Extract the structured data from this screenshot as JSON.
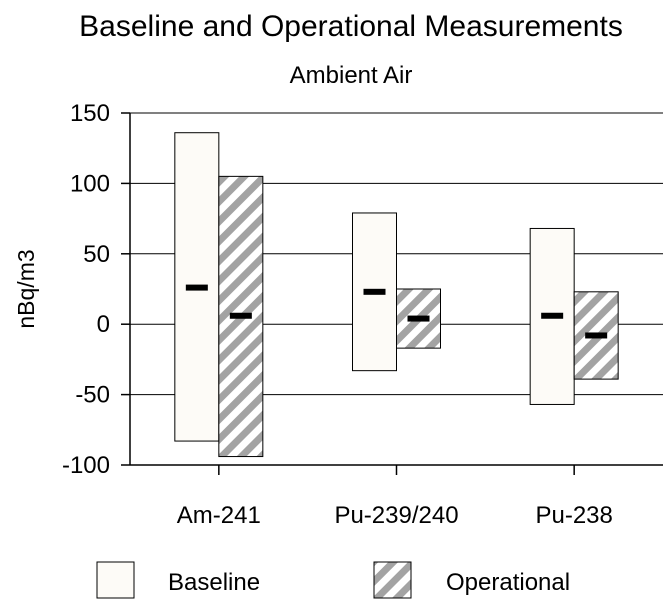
{
  "chart_data": {
    "type": "bar",
    "title": "Baseline and Operational Measurements",
    "subtitle": "Ambient Air",
    "xlabel": "",
    "ylabel": "nBq/m3",
    "ylim": [
      -100,
      150
    ],
    "yticks": [
      150,
      100,
      50,
      0,
      -50,
      -100
    ],
    "ytick_labels": [
      "150",
      "100",
      "50",
      "0",
      "-50",
      "-100"
    ],
    "categories": [
      "Am-241",
      "Pu-239/240",
      "Pu-238"
    ],
    "grid": "horizontal",
    "legend_position": "bottom",
    "series": [
      {
        "name": "Baseline",
        "pattern": "plain",
        "fill": "#fdfbf7",
        "low": [
          -83,
          -33,
          -57
        ],
        "high": [
          136,
          79,
          68
        ],
        "mean": [
          26,
          23,
          6
        ]
      },
      {
        "name": "Operational",
        "pattern": "diagonal-hatch",
        "fill": "#a3a3a3",
        "low": [
          -94,
          -17,
          -39
        ],
        "high": [
          105,
          25,
          23
        ],
        "mean": [
          6,
          4,
          -8
        ]
      }
    ]
  }
}
